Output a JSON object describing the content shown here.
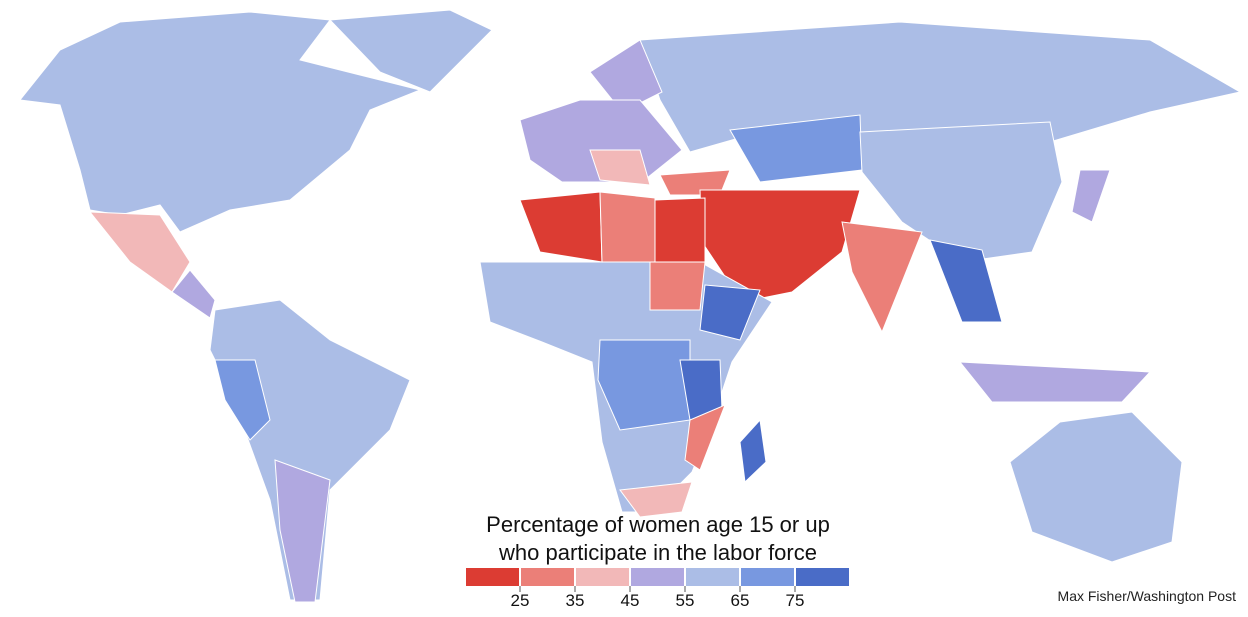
{
  "map_legend": {
    "title_lines": [
      "Percentage of women age 15 or up",
      "who participate in the labor force"
    ],
    "colors": [
      "#dc3c33",
      "#eb7f78",
      "#f2b8b8",
      "#b0a8e0",
      "#abbde6",
      "#7898e0",
      "#4a6cc7"
    ],
    "lim": [
      15,
      85
    ],
    "ticks": [
      25,
      35,
      45,
      55,
      65,
      75
    ]
  },
  "credit": "Max Fisher/Washington Post"
}
